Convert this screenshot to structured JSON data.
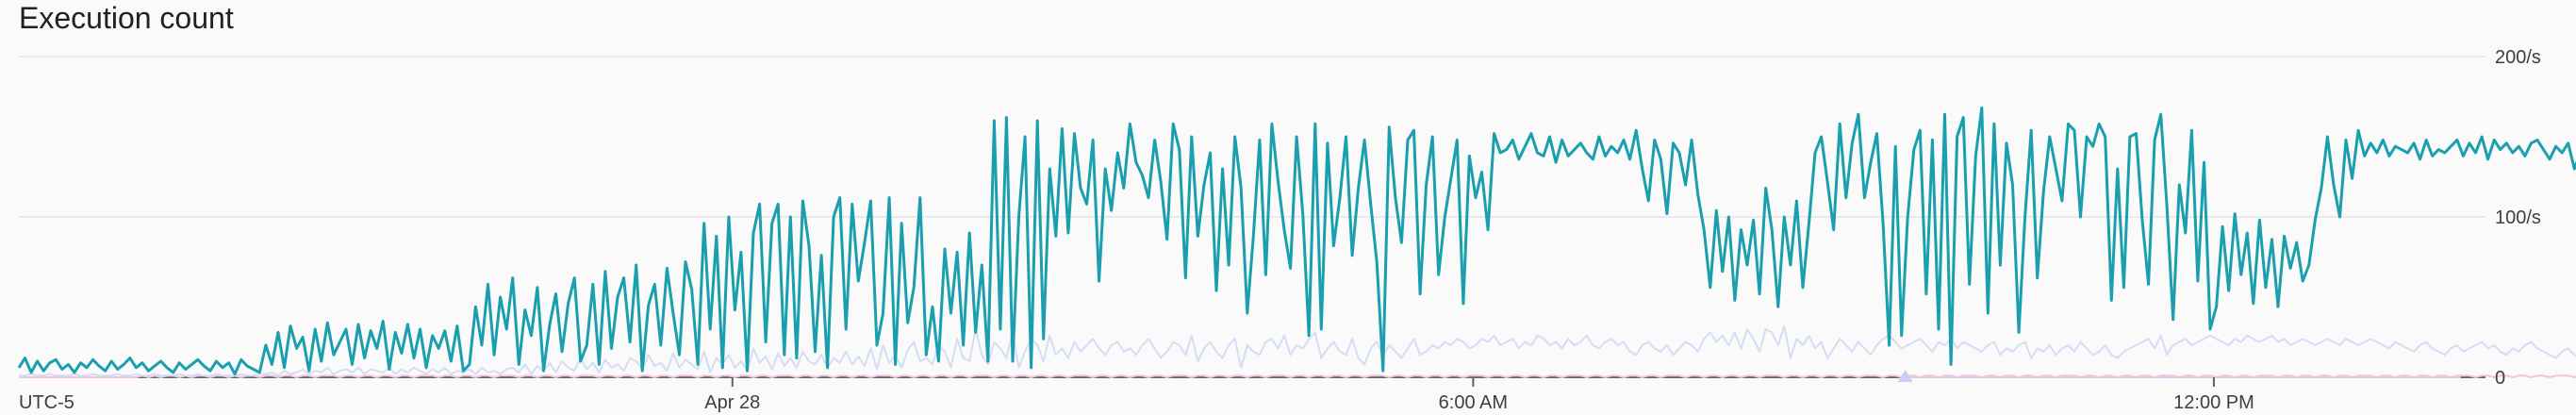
{
  "chart_data": {
    "type": "line",
    "title": "Execution count",
    "timezone_label": "UTC-5",
    "x_tick_labels": [
      "Apr 28",
      "6:00 AM",
      "12:00 PM"
    ],
    "x_ticks_hours": [
      0,
      6,
      12
    ],
    "x_range_hours": [
      -5.78,
      14.2
    ],
    "y_range": [
      0,
      200
    ],
    "y_ticks": [
      {
        "value": 0,
        "label": "0"
      },
      {
        "value": 100,
        "label": "100/s"
      },
      {
        "value": 200,
        "label": "200/s"
      }
    ],
    "grid": true,
    "legend": "none",
    "series": [
      {
        "color": "#1a9fae",
        "marker": "square",
        "x_start_hours": -5.78,
        "x_step_hours": 0.05,
        "values": [
          6,
          12,
          3,
          10,
          4,
          9,
          11,
          5,
          8,
          3,
          9,
          6,
          11,
          7,
          4,
          10,
          5,
          8,
          12,
          6,
          9,
          4,
          7,
          10,
          6,
          3,
          9,
          5,
          8,
          11,
          7,
          4,
          10,
          6,
          9,
          2,
          11,
          7,
          5,
          3,
          20,
          8,
          28,
          6,
          32,
          18,
          25,
          4,
          30,
          10,
          34,
          14,
          22,
          30,
          8,
          33,
          12,
          29,
          18,
          35,
          5,
          28,
          15,
          33,
          12,
          30,
          6,
          26,
          18,
          29,
          10,
          32,
          4,
          8,
          44,
          20,
          58,
          14,
          50,
          30,
          62,
          8,
          42,
          26,
          56,
          4,
          33,
          52,
          16,
          46,
          62,
          10,
          20,
          58,
          8,
          66,
          18,
          50,
          62,
          22,
          70,
          4,
          45,
          58,
          20,
          68,
          40,
          14,
          72,
          55,
          8,
          96,
          30,
          88,
          6,
          100,
          42,
          78,
          4,
          90,
          108,
          22,
          96,
          108,
          14,
          100,
          12,
          110,
          82,
          16,
          76,
          6,
          100,
          112,
          30,
          108,
          60,
          84,
          110,
          20,
          40,
          112,
          8,
          96,
          34,
          56,
          112,
          14,
          44,
          10,
          80,
          40,
          78,
          20,
          90,
          28,
          70,
          10,
          160,
          30,
          162,
          10,
          100,
          150,
          6,
          160,
          24,
          130,
          88,
          155,
          90,
          152,
          118,
          108,
          148,
          60,
          130,
          104,
          140,
          118,
          158,
          134,
          126,
          112,
          148,
          122,
          86,
          158,
          142,
          62,
          150,
          88,
          120,
          140,
          54,
          130,
          70,
          150,
          118,
          40,
          88,
          148,
          64,
          158,
          122,
          92,
          68,
          150,
          102,
          26,
          158,
          30,
          146,
          82,
          112,
          150,
          76,
          118,
          148,
          108,
          72,
          4,
          156,
          112,
          84,
          148,
          154,
          52,
          120,
          150,
          64,
          100,
          124,
          148,
          46,
          138,
          112,
          128,
          92,
          152,
          140,
          142,
          148,
          136,
          144,
          152,
          140,
          138,
          150,
          134,
          148,
          138,
          142,
          146,
          140,
          136,
          150,
          138,
          144,
          140,
          148,
          136,
          154,
          130,
          110,
          148,
          136,
          102,
          146,
          140,
          120,
          148,
          114,
          92,
          56,
          104,
          66,
          100,
          48,
          92,
          70,
          98,
          52,
          118,
          92,
          44,
          100,
          70,
          110,
          56,
          96,
          140,
          150,
          122,
          92,
          158,
          112,
          146,
          164,
          112,
          134,
          152,
          96,
          20,
          144,
          26,
          100,
          142,
          154,
          52,
          148,
          30,
          164,
          8,
          150,
          162,
          58,
          138,
          168,
          40,
          158,
          70,
          146,
          120,
          28,
          100,
          154,
          62,
          116,
          150,
          130,
          110,
          158,
          154,
          100,
          150,
          144,
          158,
          150,
          48,
          130,
          56,
          150,
          152,
          98,
          58,
          148,
          164,
          106,
          36,
          120,
          90,
          154,
          60,
          134,
          30,
          44,
          94,
          54,
          102,
          64,
          90,
          46,
          98,
          56,
          86,
          44,
          88,
          68,
          84,
          60,
          70,
          98,
          118,
          150,
          120,
          100,
          148,
          124,
          154,
          138,
          146,
          140,
          148,
          138,
          144,
          142,
          140,
          146,
          136,
          148,
          138,
          142,
          140,
          144,
          148,
          138,
          146,
          140,
          150,
          136,
          148,
          142,
          146,
          140,
          144,
          138,
          146,
          148,
          142,
          136,
          144,
          140,
          146,
          130,
          140,
          136,
          128,
          124,
          118,
          90,
          108,
          128,
          122,
          104,
          130,
          112,
          120,
          126,
          96,
          118,
          110,
          98,
          138,
          140,
          128,
          104,
          96,
          88,
          122,
          136,
          104,
          84,
          66,
          108,
          78,
          58,
          92,
          72,
          100,
          62,
          86,
          74,
          52,
          96,
          70,
          88,
          120,
          130,
          150,
          142,
          146,
          110,
          96,
          72,
          118,
          90,
          132,
          112,
          102,
          80,
          96,
          84,
          112,
          76,
          98,
          90,
          108
        ]
      },
      {
        "color": "#d3ddf5",
        "marker": "circle",
        "x_start_hours": -5.78,
        "x_step_hours": 0.05,
        "values": [
          1,
          1,
          2,
          1,
          1,
          2,
          1,
          1,
          1,
          2,
          1,
          1,
          2,
          1,
          1,
          1,
          2,
          1,
          1,
          2,
          1,
          1,
          2,
          1,
          1,
          1,
          2,
          1,
          1,
          2,
          1,
          1,
          2,
          1,
          1,
          1,
          2,
          1,
          1,
          2,
          2,
          3,
          1,
          4,
          2,
          3,
          5,
          2,
          4,
          3,
          6,
          2,
          4,
          5,
          3,
          6,
          2,
          5,
          4,
          3,
          6,
          2,
          5,
          3,
          6,
          4,
          2,
          5,
          3,
          6,
          2,
          4,
          3,
          5,
          2,
          6,
          3,
          4,
          2,
          5,
          6,
          3,
          8,
          2,
          7,
          4,
          9,
          3,
          10,
          6,
          4,
          12,
          5,
          9,
          3,
          11,
          6,
          8,
          4,
          12,
          10,
          5,
          14,
          7,
          9,
          4,
          15,
          6,
          11,
          8,
          5,
          16,
          3,
          12,
          8,
          14,
          6,
          10,
          4,
          18,
          9,
          13,
          5,
          15,
          7,
          12,
          6,
          16,
          10,
          8,
          14,
          6,
          12,
          9,
          16,
          8,
          13,
          7,
          18,
          5,
          20,
          9,
          14,
          6,
          17,
          22,
          10,
          12,
          8,
          20,
          16,
          6,
          24,
          12,
          10,
          30,
          14,
          8,
          22,
          18,
          12,
          28,
          6,
          16,
          24,
          20,
          10,
          26,
          14,
          18,
          12,
          22,
          16,
          20,
          24,
          18,
          14,
          20,
          22,
          16,
          18,
          14,
          20,
          24,
          18,
          12,
          16,
          22,
          20,
          14,
          26,
          10,
          18,
          22,
          16,
          12,
          20,
          24,
          6,
          20,
          16,
          14,
          22,
          24,
          18,
          26,
          14,
          20,
          18,
          24,
          28,
          12,
          18,
          22,
          16,
          14,
          24,
          12,
          8,
          18,
          22,
          14,
          20,
          16,
          12,
          18,
          24,
          14,
          16,
          20,
          18,
          22,
          20,
          24,
          22,
          18,
          20,
          24,
          22,
          26,
          20,
          22,
          24,
          18,
          22,
          20,
          26,
          24,
          20,
          22,
          18,
          24,
          20,
          22,
          26,
          20,
          18,
          22,
          24,
          20,
          22,
          16,
          14,
          20,
          22,
          18,
          16,
          20,
          14,
          18,
          22,
          20,
          16,
          24,
          28,
          22,
          26,
          20,
          28,
          18,
          30,
          24,
          16,
          30,
          28,
          20,
          32,
          12,
          24,
          20,
          26,
          18,
          22,
          12,
          18,
          24,
          20,
          16,
          22,
          18,
          14,
          20,
          24,
          26,
          22,
          18,
          20,
          22,
          24,
          20,
          16,
          22,
          20,
          24,
          18,
          22,
          20,
          18,
          16,
          20,
          22,
          14,
          18,
          16,
          20,
          22,
          12,
          18,
          16,
          20,
          14,
          18,
          20,
          16,
          22,
          18,
          14,
          16,
          20,
          14,
          12,
          16,
          18,
          20,
          22,
          24,
          18,
          26,
          14,
          20,
          22,
          24,
          20,
          22,
          24,
          26,
          24,
          22,
          20,
          24,
          22,
          26,
          24,
          22,
          24,
          26,
          22,
          24,
          20,
          22,
          24,
          22,
          20,
          22,
          24,
          22,
          20,
          24,
          22,
          20,
          22,
          24,
          22,
          20,
          18,
          22,
          20,
          18,
          16,
          20,
          22,
          18,
          16,
          14,
          18,
          20,
          16,
          18,
          20,
          22,
          18,
          20,
          16,
          14,
          18,
          16,
          20,
          22,
          18,
          16,
          14,
          12,
          16,
          18,
          14,
          12,
          16,
          14,
          18,
          16,
          14,
          12,
          16,
          18,
          14,
          12,
          14,
          16,
          18,
          20,
          18,
          16,
          14,
          18,
          16,
          20,
          18,
          16,
          14,
          18,
          16
        ]
      },
      {
        "color": "#f2c4d9",
        "marker": "diamond",
        "x_start_hours": -5.78,
        "x_step_hours": 0.05,
        "values": [
          0,
          0,
          0,
          0,
          0,
          0,
          0,
          0,
          0,
          0,
          0,
          0,
          0,
          0,
          0,
          0,
          0,
          0,
          0,
          0,
          1,
          0,
          1,
          0,
          1,
          1,
          0,
          1,
          0,
          1,
          1,
          0,
          1,
          1,
          0,
          1,
          0,
          1,
          1,
          0,
          1,
          1,
          0,
          1,
          1,
          0,
          1,
          1,
          0,
          1,
          1,
          1,
          0,
          1,
          1,
          0,
          1,
          1,
          0,
          1,
          1,
          0,
          1,
          1,
          0,
          1,
          1,
          1,
          0,
          1,
          1,
          0,
          1,
          1,
          0,
          1,
          1,
          0,
          1,
          1,
          1,
          0,
          1,
          1,
          0,
          1,
          1,
          0,
          1,
          1,
          0,
          1,
          1,
          1,
          0,
          1,
          1,
          0,
          1,
          1,
          0,
          1,
          1,
          0,
          1,
          1,
          0,
          1,
          1,
          1,
          0,
          1,
          1,
          0,
          1,
          1,
          0,
          1,
          1,
          0,
          1,
          1,
          0,
          1,
          1,
          1,
          0,
          1,
          1,
          0,
          1,
          1,
          0,
          1,
          1,
          0,
          1,
          1,
          0,
          1,
          1,
          1,
          0,
          1,
          1,
          0,
          1,
          1,
          0,
          1,
          1,
          0,
          1,
          1,
          0,
          1,
          1,
          1,
          0,
          1,
          1,
          0,
          1,
          1,
          0,
          1,
          1,
          0,
          1,
          1,
          0,
          1,
          1,
          1,
          0,
          1,
          1,
          0,
          1,
          1,
          0,
          1,
          1,
          0,
          1,
          1,
          0,
          1,
          1,
          1,
          0,
          1,
          1,
          0,
          1,
          1,
          0,
          1,
          1,
          0,
          1,
          1,
          0,
          1,
          1,
          1,
          0,
          1,
          1,
          0,
          1,
          1,
          0,
          1,
          1,
          0,
          1,
          1,
          0,
          1,
          1,
          1,
          0,
          1,
          1,
          0,
          1,
          1,
          0,
          1,
          1,
          0,
          1,
          1,
          0,
          1,
          1,
          1,
          0,
          1,
          1,
          0,
          1,
          1,
          0,
          1,
          1,
          0,
          1,
          1,
          0,
          1,
          1,
          1,
          0,
          1,
          1,
          0,
          1,
          1,
          0,
          1,
          1,
          0,
          1,
          1,
          0,
          1,
          1,
          1,
          0,
          1,
          1,
          0,
          1,
          1,
          0,
          1,
          1,
          0,
          1,
          1,
          0,
          1,
          1,
          1,
          0,
          1,
          1,
          0,
          1,
          1,
          0,
          1,
          1,
          0,
          1,
          1,
          0,
          1,
          1,
          1,
          0,
          1,
          1,
          0,
          1,
          1,
          0,
          1,
          1,
          0,
          1,
          1,
          0,
          1,
          1,
          1,
          0,
          1,
          1,
          0,
          1,
          1,
          0,
          1,
          1,
          0,
          1,
          1,
          0,
          1,
          1,
          1,
          0,
          1,
          1,
          0,
          1,
          1,
          0,
          1,
          1,
          0,
          1,
          1,
          0,
          1,
          1,
          1,
          0,
          1,
          1,
          0,
          1,
          1,
          0,
          1,
          1,
          0,
          1,
          1,
          0,
          1,
          1,
          1,
          0,
          1,
          1,
          0,
          1,
          1,
          0,
          1,
          1,
          0,
          1,
          1,
          0,
          1,
          1,
          1,
          0,
          1,
          1,
          0,
          1,
          1,
          0,
          1,
          1,
          0,
          1,
          1,
          0,
          1,
          1,
          1,
          0,
          1,
          1,
          0,
          1,
          1,
          0,
          1,
          1,
          0,
          1,
          1,
          0,
          1,
          1,
          1,
          0,
          1,
          1,
          0
        ]
      },
      {
        "color": "#cfcdf0",
        "marker": "triangle",
        "x_start_hours": 9.5,
        "x_step_hours": 0.5,
        "values": [
          0,
          0,
          0,
          0,
          0,
          0,
          0,
          0,
          0,
          0
        ]
      }
    ]
  }
}
